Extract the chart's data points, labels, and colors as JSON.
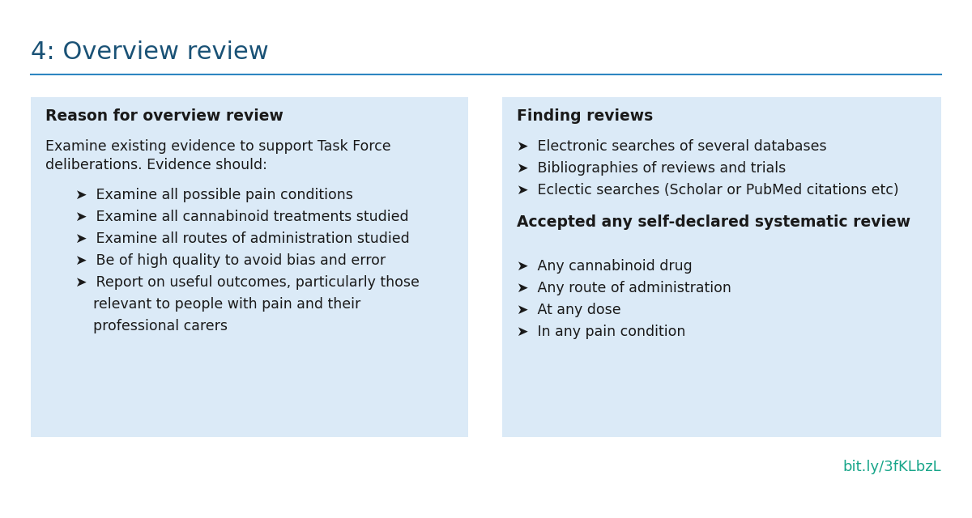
{
  "title": "4: Overview review",
  "title_color": "#1a5276",
  "title_fontsize": 22,
  "line_color": "#2e86c1",
  "background_color": "#ffffff",
  "box_bg_color": "#dbeaf7",
  "link_text": "bit.ly/3fKLbzL",
  "link_color": "#17a589",
  "left_heading": "Reason for overview review",
  "left_intro_line1": "Examine existing evidence to support Task Force",
  "left_intro_line2": "deliberations. Evidence should:",
  "left_bullets": [
    "Examine all possible pain conditions",
    "Examine all cannabinoid treatments studied",
    "Examine all routes of administration studied",
    "Be of high quality to avoid bias and error",
    "Report on useful outcomes, particularly those",
    "    relevant to people with pain and their",
    "    professional carers"
  ],
  "left_bullet_flags": [
    true,
    true,
    true,
    true,
    true,
    false,
    false
  ],
  "right_heading1": "Finding reviews",
  "right_bullets1": [
    "Electronic searches of several databases",
    "Bibliographies of reviews and trials",
    "Eclectic searches (Scholar or PubMed citations etc)"
  ],
  "right_heading2": "Accepted any self-declared systematic review",
  "right_bullets2": [
    "Any cannabinoid drug",
    "Any route of administration",
    "At any dose",
    "In any pain condition"
  ]
}
